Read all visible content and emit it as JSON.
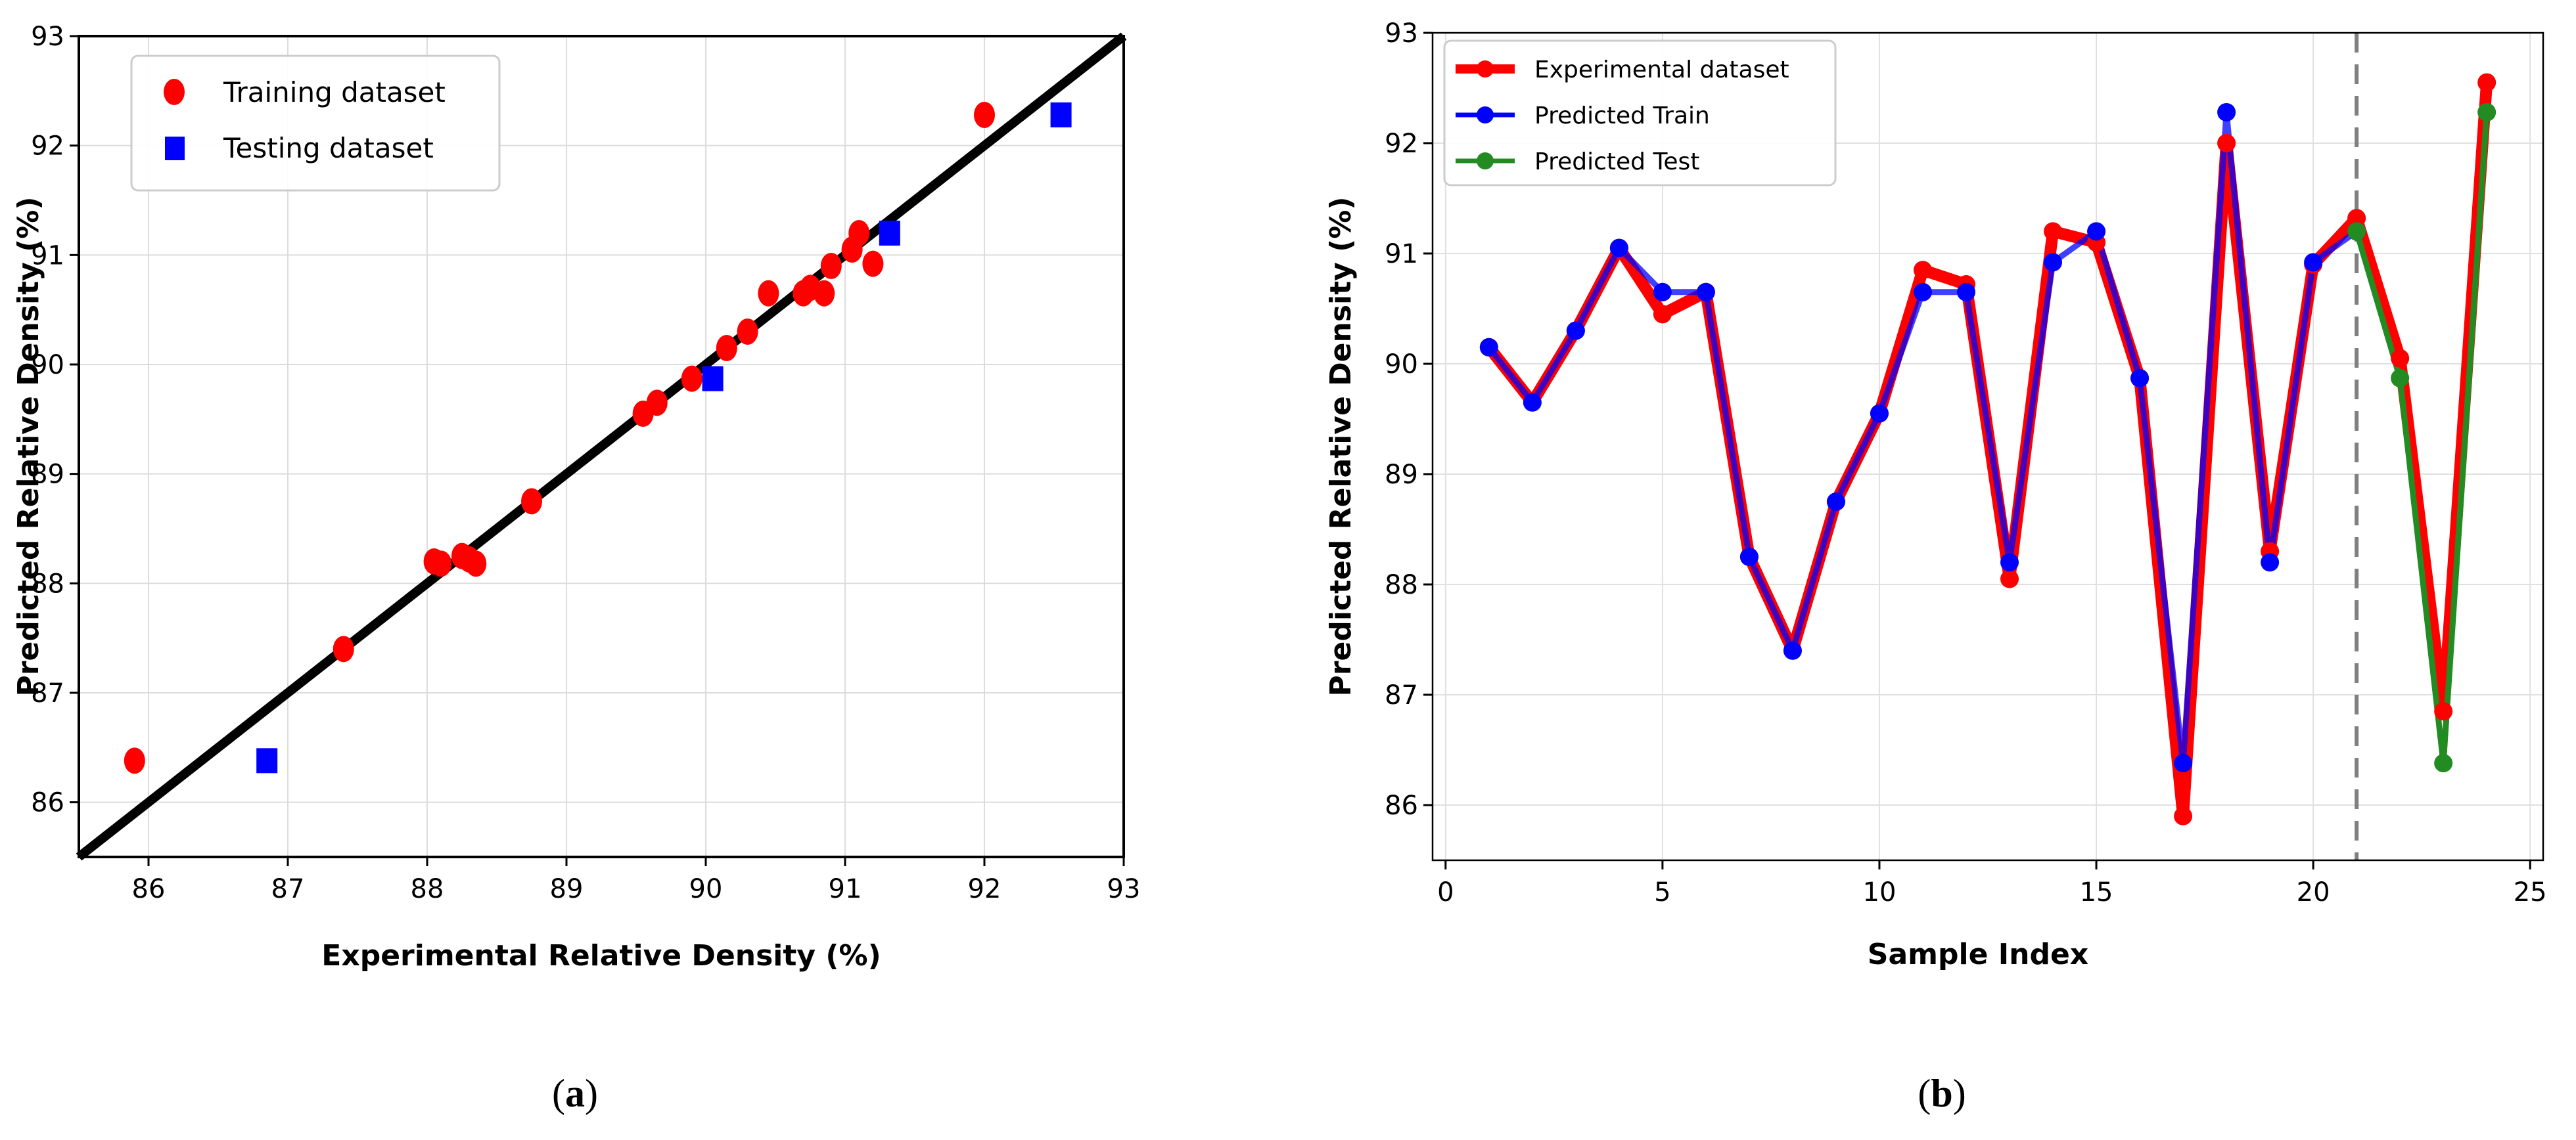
{
  "chart_data": [
    {
      "type": "scatter",
      "panel_label": "a",
      "title": "",
      "xlabel": "Experimental Relative Density (%)",
      "ylabel": "Predicted Relative Density (%)",
      "xlim": [
        85.5,
        93
      ],
      "ylim": [
        85.5,
        93
      ],
      "xticks": [
        86,
        87,
        88,
        89,
        90,
        91,
        92,
        93
      ],
      "yticks": [
        86,
        87,
        88,
        89,
        90,
        91,
        92,
        93
      ],
      "grid": true,
      "legend_position": "top-left",
      "reference_line": {
        "name": "y = x",
        "x": [
          85.5,
          93
        ],
        "y": [
          85.5,
          93
        ],
        "color": "#000000"
      },
      "series": [
        {
          "name": "Training dataset",
          "marker": "circle",
          "color": "#ff0000",
          "x": [
            85.9,
            87.4,
            88.05,
            88.1,
            88.25,
            88.3,
            88.35,
            88.75,
            89.55,
            89.65,
            89.9,
            90.15,
            90.3,
            90.45,
            90.7,
            90.75,
            90.85,
            90.9,
            91.05,
            91.1,
            91.2,
            92.0
          ],
          "y": [
            86.38,
            87.4,
            88.2,
            88.18,
            88.25,
            88.22,
            88.18,
            88.75,
            89.55,
            89.65,
            89.87,
            90.15,
            90.3,
            90.65,
            90.65,
            90.7,
            90.65,
            90.9,
            91.05,
            91.2,
            90.92,
            92.28
          ]
        },
        {
          "name": "Testing dataset",
          "marker": "square",
          "color": "#0000ff",
          "x": [
            86.85,
            90.05,
            91.32,
            92.55
          ],
          "y": [
            86.38,
            89.87,
            91.2,
            92.28
          ]
        }
      ]
    },
    {
      "type": "line",
      "panel_label": "b",
      "title": "",
      "xlabel": "Sample Index",
      "ylabel": "Predicted Relative Density (%)",
      "xlim": [
        -0.3,
        25.3
      ],
      "ylim": [
        85.5,
        93
      ],
      "xticks": [
        0,
        5,
        10,
        15,
        20,
        25
      ],
      "yticks": [
        86,
        87,
        88,
        89,
        90,
        91,
        92,
        93
      ],
      "grid": true,
      "legend_position": "top-left",
      "vline": {
        "x": 21,
        "style": "dashed",
        "color": "#808080"
      },
      "series": [
        {
          "name": "Experimental dataset",
          "color": "#ff0000",
          "x": [
            1,
            2,
            3,
            4,
            5,
            6,
            7,
            8,
            9,
            10,
            11,
            12,
            13,
            14,
            15,
            16,
            17,
            18,
            19,
            20,
            21,
            22,
            23,
            24
          ],
          "y": [
            90.15,
            89.65,
            90.3,
            91.05,
            90.45,
            90.65,
            88.25,
            87.4,
            88.75,
            89.55,
            90.85,
            90.72,
            88.05,
            91.2,
            91.1,
            89.87,
            85.9,
            92.0,
            88.3,
            90.9,
            91.32,
            90.05,
            86.85,
            92.55
          ]
        },
        {
          "name": "Predicted Train",
          "color": "#0000ff",
          "x": [
            1,
            2,
            3,
            4,
            5,
            6,
            7,
            8,
            9,
            10,
            11,
            12,
            13,
            14,
            15,
            16,
            17,
            18,
            19,
            20,
            21
          ],
          "y": [
            90.15,
            89.65,
            90.3,
            91.05,
            90.65,
            90.65,
            88.25,
            87.4,
            88.75,
            89.55,
            90.65,
            90.65,
            88.2,
            90.92,
            91.2,
            89.87,
            86.38,
            92.28,
            88.2,
            90.92,
            91.2
          ]
        },
        {
          "name": "Predicted Test",
          "color": "#228b22",
          "x": [
            21,
            22,
            23,
            24
          ],
          "y": [
            91.2,
            89.87,
            86.38,
            92.28
          ]
        }
      ]
    }
  ],
  "captions": {
    "a": "a",
    "b": "b"
  }
}
